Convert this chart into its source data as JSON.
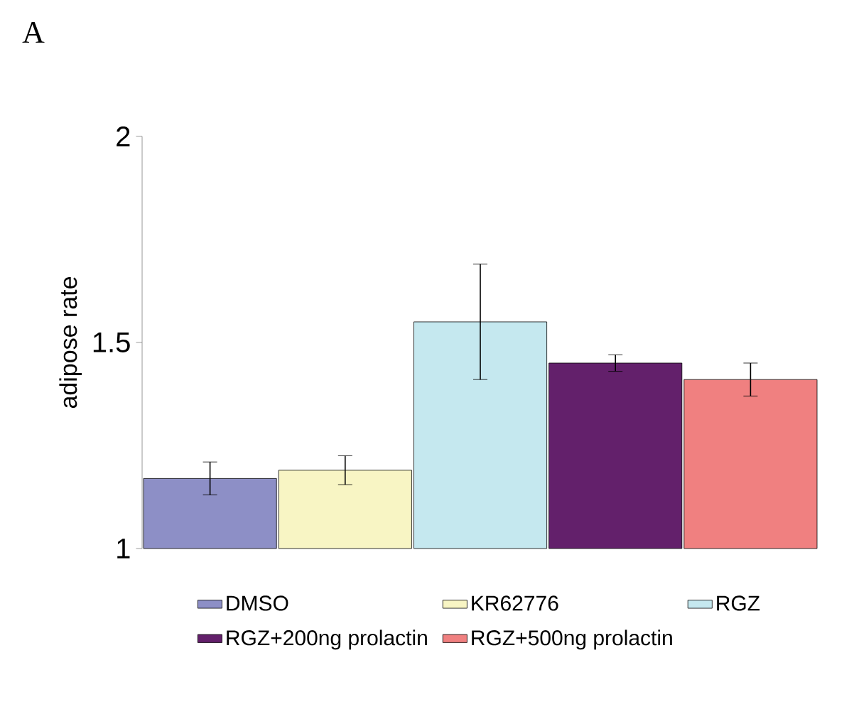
{
  "chart_data": {
    "type": "bar",
    "annotations": [
      "A"
    ],
    "ylabel": "adipose rate",
    "categories": [
      null
    ],
    "series": [
      {
        "name": "DMSO",
        "color": "#8d8fc6",
        "values": [
          1.17
        ],
        "errors": [
          0.04
        ]
      },
      {
        "name": "KR62776",
        "color": "#f8f5c4",
        "values": [
          1.19
        ],
        "errors": [
          0.035
        ]
      },
      {
        "name": "RGZ",
        "color": "#c5e8ef",
        "values": [
          1.55
        ],
        "errors": [
          0.14
        ]
      },
      {
        "name": "RGZ+200ng prolactin",
        "color": "#63206b",
        "values": [
          1.45
        ],
        "errors": [
          0.02
        ]
      },
      {
        "name": "RGZ+500ng prolactin",
        "color": "#f08080",
        "values": [
          1.41
        ],
        "errors": [
          0.04
        ]
      }
    ],
    "ylim": [
      1,
      2
    ],
    "yticks": [
      1,
      1.5,
      2
    ],
    "tick_labels": "y",
    "legend": "bottom",
    "grid": false
  }
}
